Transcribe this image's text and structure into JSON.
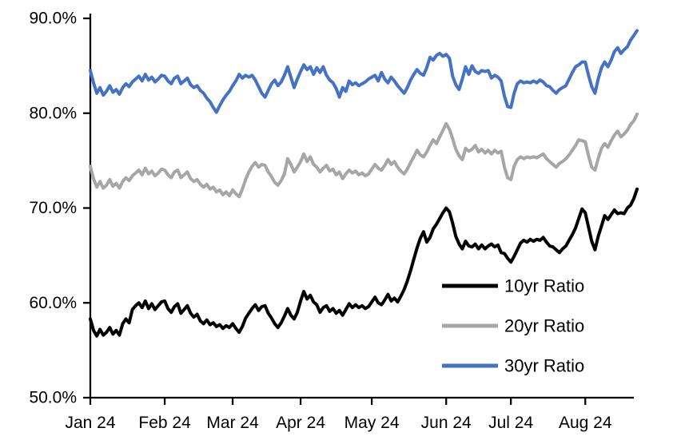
{
  "chart_data": {
    "type": "line",
    "title": "",
    "xlabel": "",
    "ylabel": "",
    "grid": false,
    "legend_position": "inside-lower-right",
    "y_axis": {
      "min": 50,
      "max": 90,
      "tick_values": [
        50,
        60,
        70,
        80,
        90
      ],
      "tick_labels": [
        "50.0%",
        "60.0%",
        "70.0%",
        "80.0%",
        "90.0%"
      ]
    },
    "x_axis": {
      "tick_labels": [
        "Jan 24",
        "Feb 24",
        "Mar 24",
        "Apr 24",
        "May 24",
        "Jun 24",
        "Jul 24",
        "Aug 24"
      ],
      "month_start_indices": [
        0,
        23,
        44,
        65,
        87,
        110,
        130,
        153
      ]
    },
    "series": [
      {
        "name": "10yr Ratio",
        "color": "#000000",
        "values": [
          58.3,
          57.1,
          56.5,
          57.2,
          56.6,
          56.9,
          57.4,
          56.7,
          57.1,
          56.6,
          57.8,
          58.3,
          57.9,
          59.3,
          59.7,
          60.0,
          59.5,
          60.2,
          59.4,
          59.9,
          59.3,
          59.7,
          60.1,
          60.2,
          59.4,
          59.0,
          59.6,
          59.9,
          58.9,
          59.3,
          59.7,
          58.9,
          58.5,
          58.8,
          58.1,
          57.8,
          58.2,
          57.7,
          57.9,
          57.5,
          57.7,
          57.3,
          57.6,
          57.4,
          57.8,
          57.3,
          56.9,
          57.5,
          58.4,
          58.9,
          59.4,
          59.8,
          59.2,
          59.6,
          59.7,
          58.9,
          58.4,
          57.8,
          57.4,
          57.9,
          58.6,
          59.4,
          58.7,
          58.3,
          59.0,
          60.2,
          61.2,
          60.4,
          60.8,
          60.1,
          59.8,
          59.0,
          59.5,
          59.7,
          59.1,
          59.4,
          58.9,
          59.2,
          58.7,
          59.3,
          59.9,
          59.5,
          59.8,
          59.5,
          59.7,
          59.4,
          59.6,
          60.1,
          60.6,
          60.0,
          59.8,
          60.3,
          60.9,
          60.2,
          60.5,
          60.1,
          60.7,
          61.4,
          62.3,
          63.4,
          64.6,
          65.8,
          66.8,
          67.5,
          66.4,
          66.9,
          67.8,
          68.3,
          68.9,
          69.5,
          70.0,
          69.6,
          68.4,
          67.0,
          66.2,
          65.7,
          66.5,
          66.0,
          65.9,
          66.2,
          65.7,
          66.1,
          65.7,
          66.0,
          66.2,
          65.9,
          66.1,
          65.3,
          65.2,
          64.7,
          64.3,
          64.9,
          65.6,
          66.3,
          66.6,
          66.4,
          66.7,
          66.5,
          66.7,
          66.6,
          66.9,
          66.4,
          66.0,
          65.9,
          65.6,
          65.3,
          65.7,
          66.0,
          66.6,
          67.2,
          67.9,
          68.9,
          69.9,
          69.5,
          68.0,
          66.5,
          65.6,
          67.0,
          68.1,
          69.2,
          68.8,
          69.3,
          69.8,
          69.4,
          69.5,
          69.4,
          70.0,
          70.3,
          71.0,
          72.0
        ]
      },
      {
        "name": "20yr Ratio",
        "color": "#A6A6A6",
        "values": [
          74.4,
          73.1,
          72.2,
          72.8,
          72.1,
          72.4,
          73.0,
          72.3,
          72.6,
          72.1,
          72.8,
          73.2,
          72.9,
          73.4,
          73.7,
          74.0,
          73.5,
          74.2,
          73.6,
          73.9,
          73.4,
          73.7,
          74.1,
          74.0,
          73.5,
          73.2,
          73.8,
          74.0,
          73.2,
          73.5,
          73.8,
          73.1,
          72.8,
          73.0,
          72.5,
          72.2,
          72.5,
          72.0,
          72.2,
          71.7,
          71.9,
          71.4,
          71.7,
          71.3,
          71.9,
          71.5,
          71.2,
          72.0,
          73.0,
          73.8,
          74.4,
          74.8,
          74.3,
          74.6,
          74.5,
          73.8,
          73.3,
          72.7,
          72.4,
          72.9,
          73.6,
          75.2,
          74.6,
          73.8,
          74.3,
          74.9,
          75.7,
          74.9,
          75.4,
          74.6,
          74.3,
          73.8,
          74.2,
          74.5,
          73.9,
          74.1,
          73.5,
          73.8,
          73.1,
          73.6,
          74.0,
          73.7,
          73.9,
          73.5,
          73.7,
          73.4,
          73.6,
          74.1,
          74.6,
          74.2,
          74.0,
          74.5,
          75.1,
          74.6,
          74.9,
          74.3,
          73.9,
          73.6,
          74.1,
          74.8,
          75.4,
          76.1,
          75.6,
          75.4,
          75.9,
          76.6,
          77.2,
          76.8,
          77.5,
          78.2,
          78.9,
          78.3,
          77.3,
          76.2,
          75.5,
          75.1,
          76.3,
          76.0,
          76.2,
          76.6,
          75.9,
          76.2,
          75.8,
          76.1,
          75.7,
          76.1,
          75.8,
          76.0,
          74.3,
          73.2,
          73.0,
          74.4,
          75.1,
          75.4,
          75.2,
          75.4,
          75.3,
          75.4,
          75.3,
          75.5,
          75.7,
          75.2,
          74.9,
          74.6,
          74.3,
          74.7,
          74.9,
          75.2,
          75.6,
          76.1,
          76.6,
          77.2,
          77.1,
          77.0,
          75.5,
          74.3,
          74.0,
          75.2,
          76.3,
          76.8,
          76.4,
          77.1,
          77.7,
          78.1,
          77.5,
          77.8,
          78.2,
          78.8,
          79.2,
          79.9
        ]
      },
      {
        "name": "30yr Ratio",
        "color": "#4472C4",
        "values": [
          84.5,
          83.2,
          82.1,
          82.7,
          81.9,
          82.3,
          82.9,
          82.2,
          82.5,
          82.0,
          82.7,
          83.1,
          82.8,
          83.3,
          83.6,
          83.9,
          83.4,
          84.1,
          83.5,
          83.8,
          83.3,
          83.6,
          84.0,
          83.9,
          83.4,
          83.1,
          83.7,
          83.9,
          83.1,
          83.4,
          83.7,
          83.0,
          82.7,
          82.9,
          82.4,
          82.1,
          81.6,
          81.2,
          80.6,
          80.1,
          80.8,
          81.4,
          81.9,
          82.3,
          82.9,
          83.4,
          84.1,
          83.7,
          84.0,
          83.8,
          84.0,
          83.5,
          82.8,
          82.1,
          81.7,
          82.4,
          83.1,
          83.5,
          82.9,
          83.3,
          84.0,
          84.9,
          83.8,
          82.7,
          83.6,
          84.4,
          85.1,
          84.6,
          84.9,
          84.1,
          84.8,
          84.3,
          84.9,
          84.0,
          83.5,
          83.2,
          82.6,
          81.7,
          82.7,
          82.3,
          83.4,
          83.0,
          83.2,
          82.9,
          83.1,
          83.3,
          83.6,
          83.8,
          84.0,
          83.4,
          84.3,
          83.6,
          83.2,
          83.8,
          83.4,
          82.9,
          82.5,
          82.1,
          82.7,
          83.5,
          84.1,
          84.6,
          84.2,
          84.0,
          84.8,
          85.9,
          85.6,
          86.1,
          86.3,
          86.0,
          86.2,
          85.8,
          83.9,
          83.0,
          82.5,
          83.6,
          84.9,
          84.1,
          85.0,
          84.4,
          84.2,
          84.5,
          84.4,
          84.5,
          83.7,
          84.0,
          83.8,
          83.4,
          81.8,
          80.7,
          80.6,
          82.1,
          83.1,
          83.4,
          83.2,
          83.3,
          83.2,
          83.4,
          83.2,
          83.5,
          83.3,
          82.9,
          82.8,
          82.4,
          82.1,
          82.5,
          82.7,
          82.9,
          83.6,
          84.3,
          84.9,
          85.1,
          85.4,
          85.4,
          84.0,
          82.8,
          82.1,
          83.6,
          84.8,
          85.4,
          84.9,
          85.6,
          86.5,
          86.9,
          86.3,
          86.7,
          87.0,
          87.7,
          88.2,
          88.7
        ]
      }
    ]
  }
}
